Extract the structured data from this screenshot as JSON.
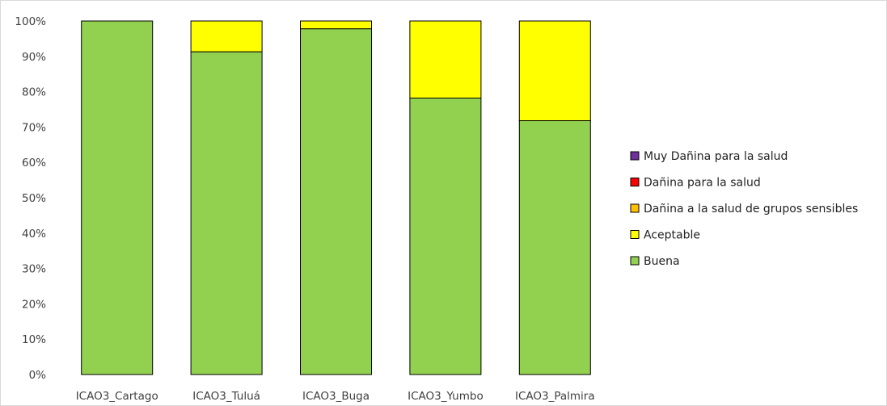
{
  "chart_data": {
    "type": "bar",
    "stacked": true,
    "title": "",
    "xlabel": "",
    "ylabel": "",
    "ylim": [
      0,
      100
    ],
    "y_ticks": [
      "0%",
      "10%",
      "20%",
      "30%",
      "40%",
      "50%",
      "60%",
      "70%",
      "80%",
      "90%",
      "100%"
    ],
    "grid": false,
    "legend_position": "right",
    "categories": [
      "ICAO3_Cartago",
      "ICAO3_Tuluá",
      "ICAO3_Buga",
      "ICAO3_Yumbo",
      "ICAO3_Palmira"
    ],
    "series": [
      {
        "name": "Buena",
        "color": "#92d050",
        "values": [
          100,
          91.3,
          97.8,
          78.2,
          71.8
        ]
      },
      {
        "name": "Aceptable",
        "color": "#ffff00",
        "values": [
          0,
          8.7,
          2.2,
          21.8,
          28.2
        ]
      },
      {
        "name": "Dañina a la salud de grupos sensibles",
        "color": "#ffc000",
        "values": [
          0,
          0,
          0,
          0,
          0
        ]
      },
      {
        "name": "Dañina para la salud",
        "color": "#ff0000",
        "values": [
          0,
          0,
          0,
          0,
          0
        ]
      },
      {
        "name": "Muy Dañina para la salud",
        "color": "#7030a0",
        "values": [
          0,
          0,
          0,
          0,
          0
        ]
      }
    ]
  }
}
